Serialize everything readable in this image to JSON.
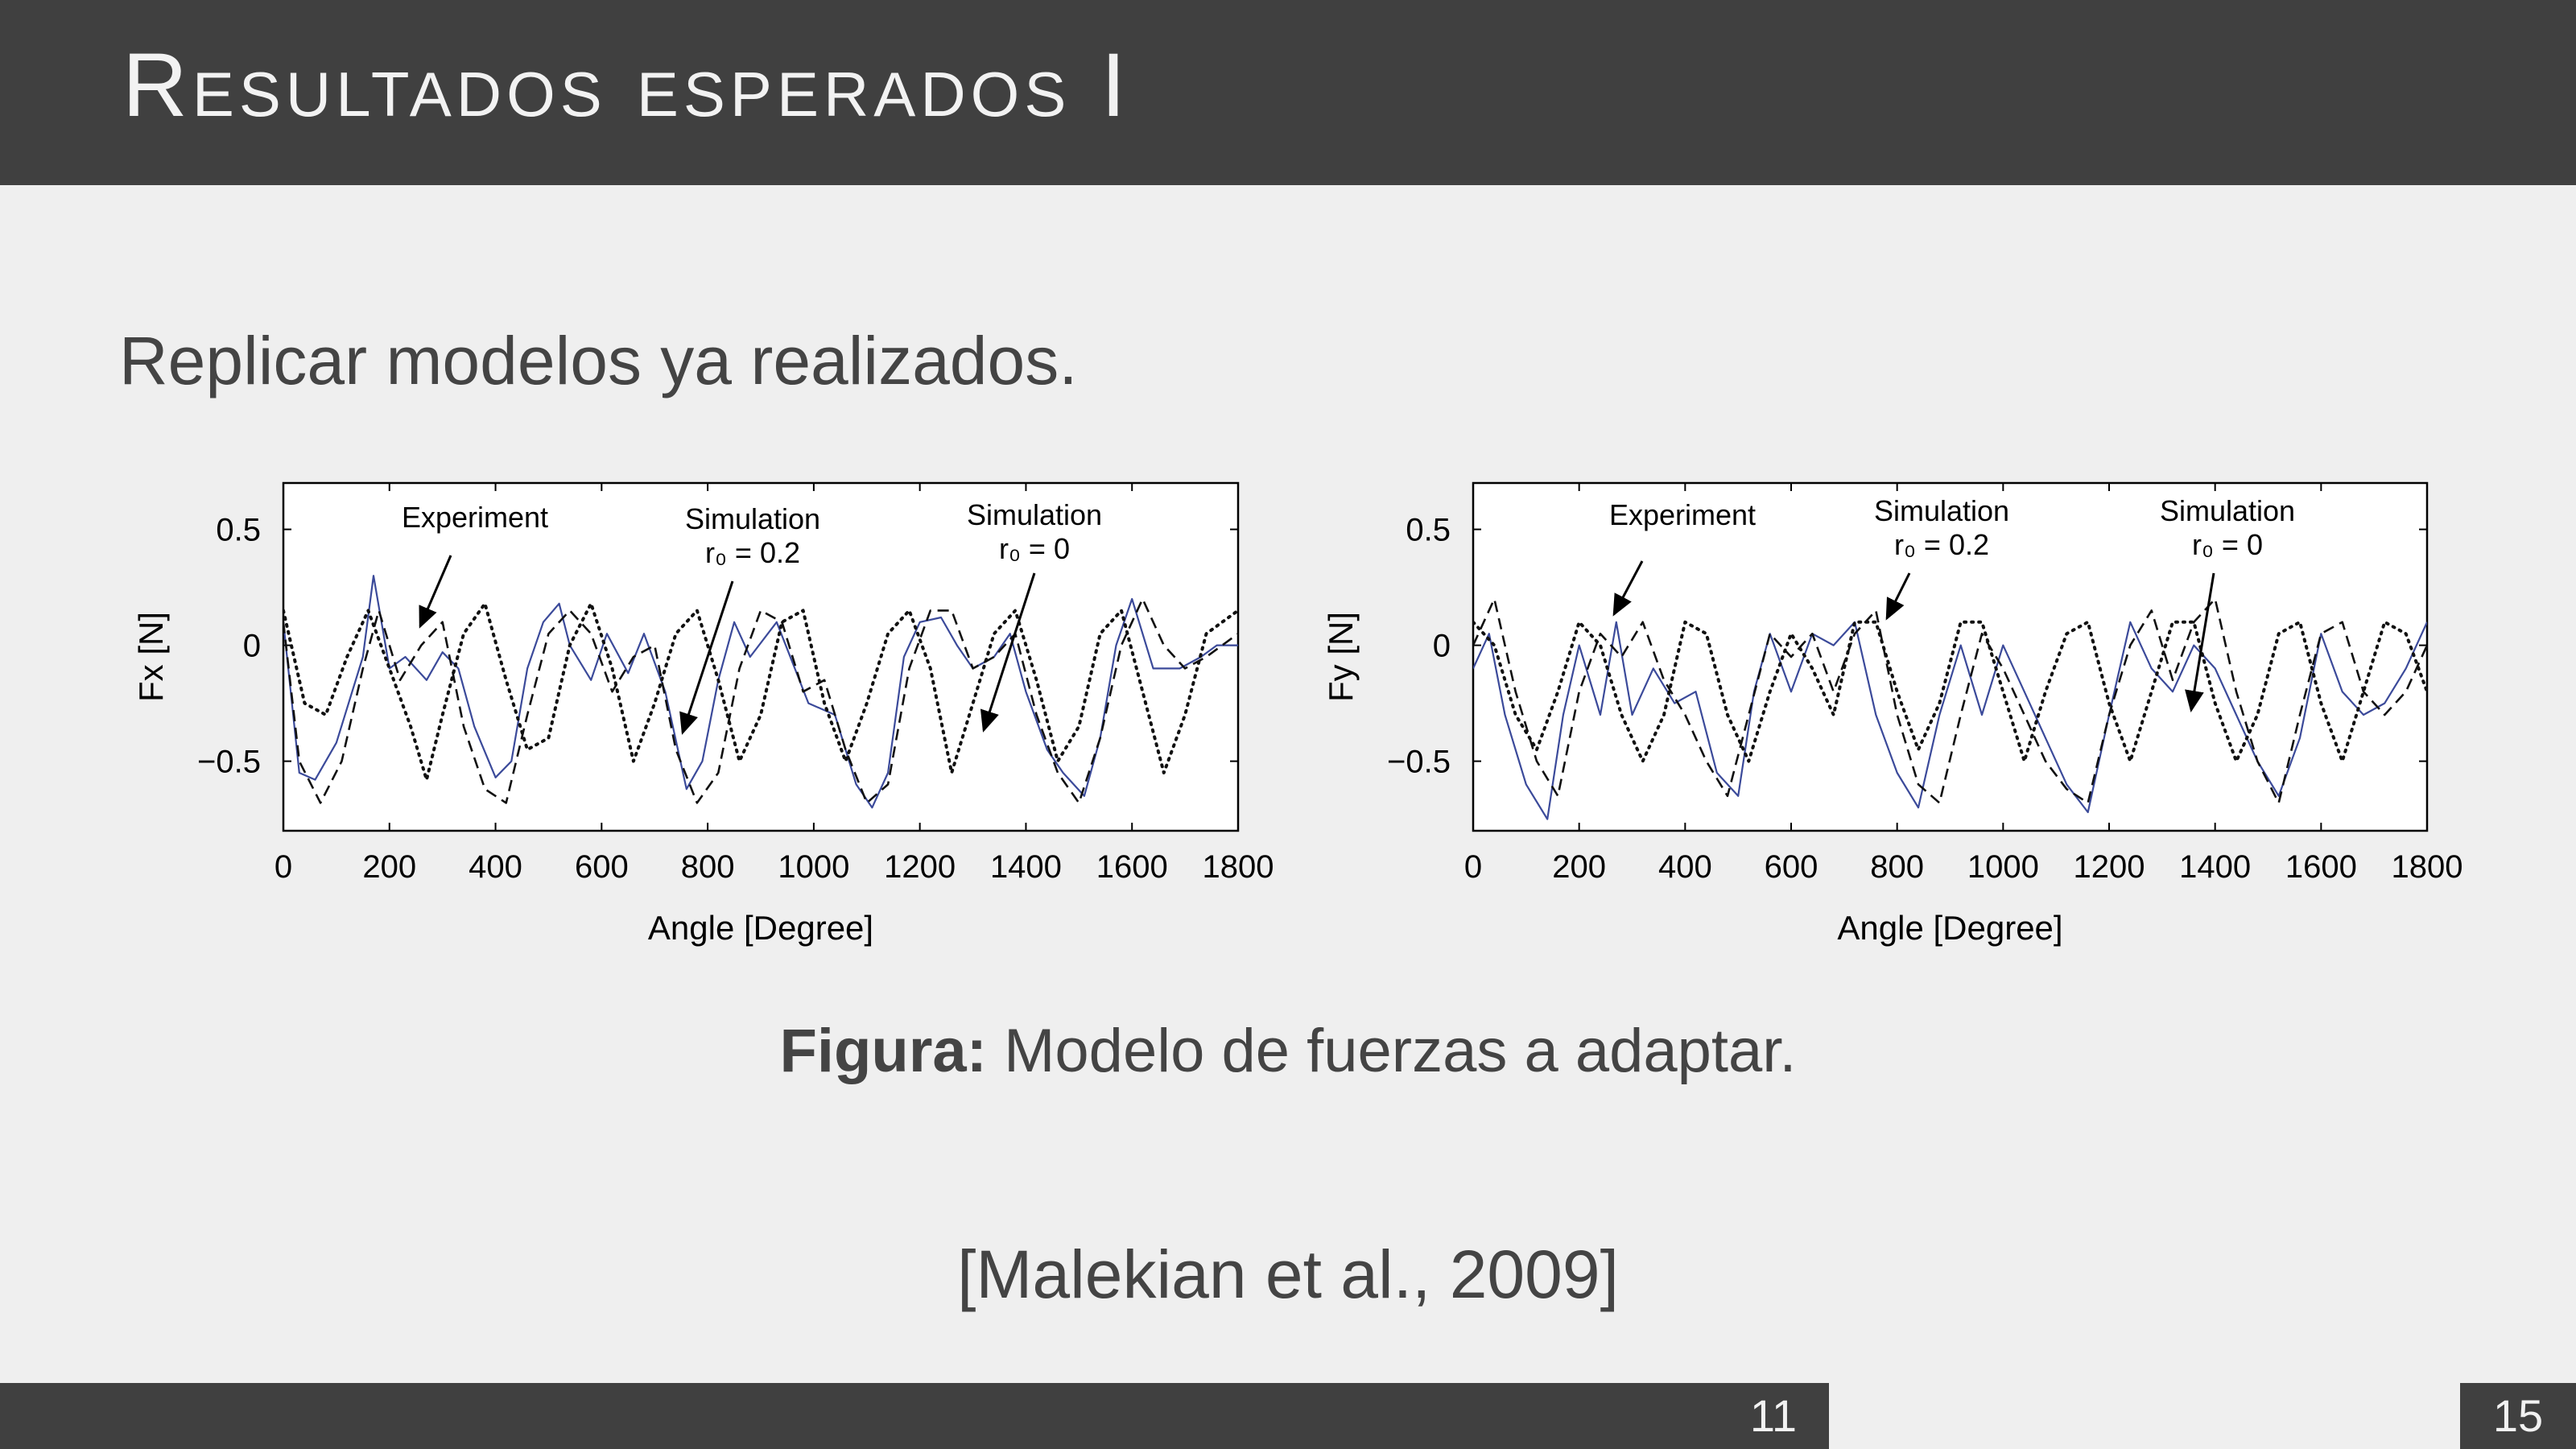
{
  "slide": {
    "title": "Resultados esperados I",
    "subtitle": "Replicar modelos ya realizados.",
    "caption_bold": "Figura:",
    "caption_text": " Modelo de fuerzas a adaptar.",
    "citation": "[Malekian et al., 2009]",
    "page_number": "11",
    "total_pages": "15"
  },
  "chart_data": [
    {
      "type": "line",
      "ylabel": "Fx [N]",
      "xlabel": "Angle [Degree]",
      "xlim": [
        0,
        1800
      ],
      "ylim": [
        -0.8,
        0.7
      ],
      "xticks": [
        "0",
        "200",
        "400",
        "600",
        "800",
        "1000",
        "1200",
        "1400",
        "1600",
        "1800"
      ],
      "yticks": [
        "0.5",
        "0",
        "−0.5"
      ],
      "annotations": [
        {
          "line1": "Experiment",
          "line2": ""
        },
        {
          "line1": "Simulation",
          "line2": "r₀ = 0.2"
        },
        {
          "line1": "Simulation",
          "line2": "r₀ = 0"
        }
      ],
      "series": [
        {
          "name": "Experiment",
          "style": "solid",
          "color": "#3b4a9a",
          "x": [
            0,
            30,
            60,
            100,
            150,
            170,
            200,
            230,
            270,
            300,
            330,
            360,
            400,
            430,
            460,
            490,
            520,
            540,
            580,
            610,
            650,
            680,
            720,
            760,
            790,
            820,
            850,
            880,
            930,
            990,
            1040,
            1080,
            1110,
            1140,
            1170,
            1200,
            1240,
            1270,
            1300,
            1340,
            1370,
            1400,
            1440,
            1470,
            1510,
            1540,
            1570,
            1600,
            1640,
            1690,
            1730,
            1760,
            1800
          ],
          "y": [
            0.1,
            -0.55,
            -0.58,
            -0.42,
            -0.05,
            0.3,
            -0.1,
            -0.05,
            -0.15,
            -0.03,
            -0.1,
            -0.35,
            -0.57,
            -0.5,
            -0.1,
            0.1,
            0.18,
            0.0,
            -0.15,
            0.05,
            -0.12,
            0.05,
            -0.2,
            -0.62,
            -0.5,
            -0.15,
            0.1,
            -0.05,
            0.1,
            -0.25,
            -0.3,
            -0.6,
            -0.7,
            -0.55,
            -0.05,
            0.1,
            0.12,
            0.0,
            -0.1,
            -0.05,
            0.05,
            -0.2,
            -0.45,
            -0.55,
            -0.65,
            -0.4,
            0.0,
            0.2,
            -0.1,
            -0.1,
            -0.05,
            0.0,
            0.0
          ]
        },
        {
          "name": "Simulation r0 = 0.2",
          "style": "dashed",
          "color": "#111111",
          "x": [
            0,
            30,
            70,
            110,
            150,
            180,
            220,
            260,
            300,
            340,
            380,
            420,
            460,
            500,
            540,
            580,
            620,
            660,
            700,
            740,
            780,
            820,
            860,
            900,
            940,
            980,
            1020,
            1060,
            1100,
            1140,
            1180,
            1220,
            1260,
            1300,
            1340,
            1380,
            1420,
            1460,
            1500,
            1540,
            1580,
            1620,
            1660,
            1700,
            1740,
            1800
          ],
          "y": [
            0.1,
            -0.5,
            -0.68,
            -0.5,
            -0.1,
            0.15,
            -0.15,
            0.0,
            0.1,
            -0.35,
            -0.62,
            -0.68,
            -0.3,
            0.05,
            0.15,
            0.05,
            -0.2,
            -0.05,
            0.0,
            -0.45,
            -0.68,
            -0.55,
            -0.1,
            0.15,
            0.1,
            -0.2,
            -0.15,
            -0.45,
            -0.68,
            -0.6,
            -0.1,
            0.15,
            0.15,
            -0.1,
            -0.05,
            0.05,
            -0.3,
            -0.55,
            -0.68,
            -0.4,
            0.0,
            0.2,
            0.0,
            -0.1,
            -0.05,
            0.05
          ]
        },
        {
          "name": "Simulation r0 = 0",
          "style": "dotted",
          "color": "#111111",
          "x": [
            0,
            40,
            80,
            120,
            160,
            200,
            240,
            270,
            300,
            340,
            380,
            420,
            460,
            500,
            540,
            580,
            620,
            660,
            700,
            740,
            780,
            820,
            860,
            900,
            940,
            980,
            1020,
            1060,
            1100,
            1140,
            1180,
            1220,
            1260,
            1300,
            1340,
            1380,
            1420,
            1460,
            1500,
            1540,
            1580,
            1620,
            1660,
            1700,
            1740,
            1800
          ],
          "y": [
            0.15,
            -0.25,
            -0.3,
            -0.05,
            0.15,
            -0.1,
            -0.35,
            -0.58,
            -0.3,
            0.05,
            0.18,
            -0.15,
            -0.45,
            -0.4,
            0.0,
            0.18,
            -0.1,
            -0.5,
            -0.25,
            0.05,
            0.15,
            -0.15,
            -0.5,
            -0.3,
            0.1,
            0.15,
            -0.25,
            -0.5,
            -0.25,
            0.05,
            0.15,
            -0.1,
            -0.55,
            -0.25,
            0.05,
            0.15,
            -0.15,
            -0.5,
            -0.35,
            0.05,
            0.15,
            -0.2,
            -0.55,
            -0.3,
            0.05,
            0.15
          ]
        }
      ]
    },
    {
      "type": "line",
      "ylabel": "Fy [N]",
      "xlabel": "Angle [Degree]",
      "xlim": [
        0,
        1800
      ],
      "ylim": [
        -0.8,
        0.7
      ],
      "xticks": [
        "0",
        "200",
        "400",
        "600",
        "800",
        "1000",
        "1200",
        "1400",
        "1600",
        "1800"
      ],
      "yticks": [
        "0.5",
        "0",
        "−0.5"
      ],
      "annotations": [
        {
          "line1": "Experiment",
          "line2": ""
        },
        {
          "line1": "Simulation",
          "line2": "r₀ = 0.2"
        },
        {
          "line1": "Simulation",
          "line2": "r₀ = 0"
        }
      ],
      "series": [
        {
          "name": "Experiment",
          "style": "solid",
          "color": "#3b4a9a",
          "x": [
            0,
            30,
            60,
            100,
            140,
            170,
            200,
            240,
            270,
            300,
            340,
            380,
            420,
            460,
            500,
            530,
            560,
            600,
            640,
            680,
            720,
            760,
            800,
            840,
            880,
            920,
            960,
            1000,
            1040,
            1080,
            1120,
            1160,
            1200,
            1240,
            1280,
            1320,
            1360,
            1400,
            1440,
            1480,
            1520,
            1560,
            1600,
            1640,
            1680,
            1720,
            1760,
            1800
          ],
          "y": [
            -0.1,
            0.05,
            -0.3,
            -0.6,
            -0.75,
            -0.3,
            0.0,
            -0.3,
            0.1,
            -0.3,
            -0.1,
            -0.25,
            -0.2,
            -0.55,
            -0.65,
            -0.2,
            0.05,
            -0.2,
            0.05,
            0.0,
            0.1,
            -0.3,
            -0.55,
            -0.7,
            -0.3,
            0.0,
            -0.3,
            0.0,
            -0.2,
            -0.4,
            -0.6,
            -0.72,
            -0.3,
            0.1,
            -0.1,
            -0.2,
            0.0,
            -0.1,
            -0.3,
            -0.5,
            -0.65,
            -0.4,
            0.05,
            -0.2,
            -0.3,
            -0.25,
            -0.1,
            0.1
          ]
        },
        {
          "name": "Simulation r0 = 0.2",
          "style": "dashed",
          "color": "#111111",
          "x": [
            0,
            40,
            80,
            120,
            160,
            200,
            240,
            280,
            320,
            360,
            400,
            440,
            480,
            520,
            560,
            600,
            640,
            680,
            720,
            760,
            800,
            840,
            880,
            920,
            960,
            1000,
            1040,
            1080,
            1120,
            1160,
            1200,
            1240,
            1280,
            1320,
            1360,
            1400,
            1440,
            1480,
            1520,
            1560,
            1600,
            1640,
            1680,
            1720,
            1760,
            1800
          ],
          "y": [
            0.0,
            0.2,
            -0.2,
            -0.5,
            -0.65,
            -0.2,
            0.05,
            -0.05,
            0.1,
            -0.15,
            -0.3,
            -0.5,
            -0.65,
            -0.3,
            0.05,
            -0.05,
            0.05,
            -0.2,
            0.05,
            0.15,
            -0.3,
            -0.6,
            -0.68,
            -0.3,
            0.05,
            -0.1,
            -0.3,
            -0.5,
            -0.62,
            -0.68,
            -0.3,
            0.0,
            0.15,
            -0.15,
            0.1,
            0.2,
            -0.2,
            -0.5,
            -0.68,
            -0.3,
            0.05,
            0.1,
            -0.2,
            -0.3,
            -0.2,
            0.0
          ]
        },
        {
          "name": "Simulation r0 = 0",
          "style": "dotted",
          "color": "#111111",
          "x": [
            0,
            40,
            80,
            120,
            160,
            200,
            240,
            280,
            320,
            360,
            400,
            440,
            480,
            520,
            560,
            600,
            640,
            680,
            720,
            760,
            800,
            840,
            880,
            920,
            960,
            1000,
            1040,
            1080,
            1120,
            1160,
            1200,
            1240,
            1280,
            1320,
            1360,
            1400,
            1440,
            1480,
            1520,
            1560,
            1600,
            1640,
            1680,
            1720,
            1760,
            1800
          ],
          "y": [
            0.1,
            0.0,
            -0.3,
            -0.45,
            -0.2,
            0.1,
            0.0,
            -0.3,
            -0.5,
            -0.3,
            0.1,
            0.05,
            -0.3,
            -0.5,
            -0.2,
            0.05,
            -0.1,
            -0.3,
            0.1,
            0.1,
            -0.2,
            -0.45,
            -0.25,
            0.1,
            0.1,
            -0.2,
            -0.5,
            -0.2,
            0.05,
            0.1,
            -0.25,
            -0.5,
            -0.2,
            0.1,
            0.1,
            -0.25,
            -0.5,
            -0.3,
            0.05,
            0.1,
            -0.25,
            -0.5,
            -0.2,
            0.1,
            0.05,
            -0.2
          ]
        }
      ]
    }
  ]
}
